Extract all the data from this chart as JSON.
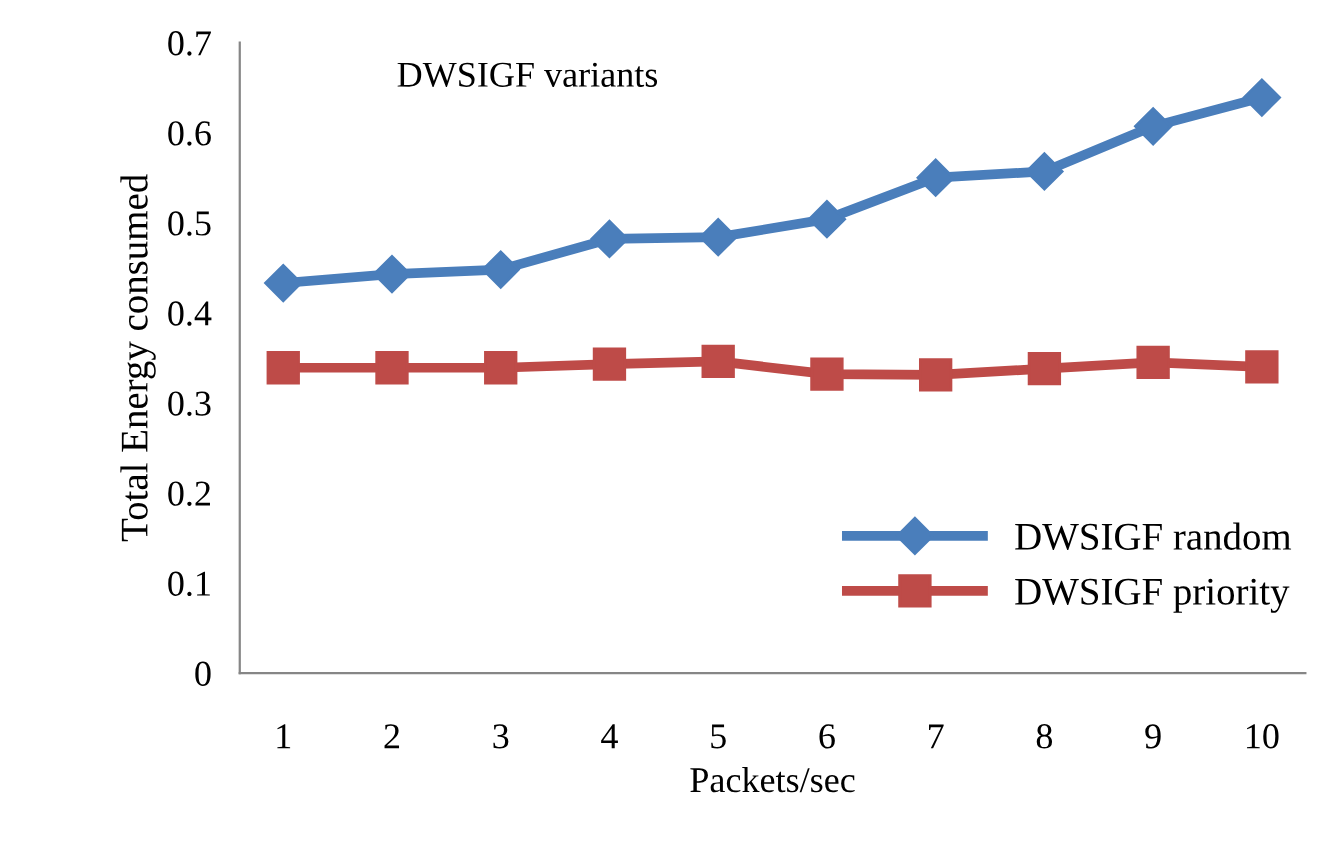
{
  "chart_data": {
    "type": "line",
    "title": "DWSIGF variants",
    "xlabel": "Packets/sec",
    "ylabel": "Total Energy consumed",
    "categories": [
      "1",
      "2",
      "3",
      "4",
      "5",
      "6",
      "7",
      "8",
      "9",
      "10"
    ],
    "series": [
      {
        "name": "DWSIGF random",
        "color": "#4a7ebb",
        "marker": "diamond",
        "values": [
          0.433,
          0.443,
          0.448,
          0.482,
          0.484,
          0.504,
          0.55,
          0.557,
          0.607,
          0.639
        ]
      },
      {
        "name": "DWSIGF priority",
        "color": "#be4b48",
        "marker": "square",
        "values": [
          0.339,
          0.339,
          0.339,
          0.343,
          0.346,
          0.332,
          0.331,
          0.338,
          0.345,
          0.34
        ]
      }
    ],
    "ylim": [
      0,
      0.7
    ],
    "yticks": [
      0,
      0.1,
      0.2,
      0.3,
      0.4,
      0.5,
      0.6,
      0.7
    ],
    "grid": false,
    "legend": "bottom right",
    "line_style": "solid"
  }
}
